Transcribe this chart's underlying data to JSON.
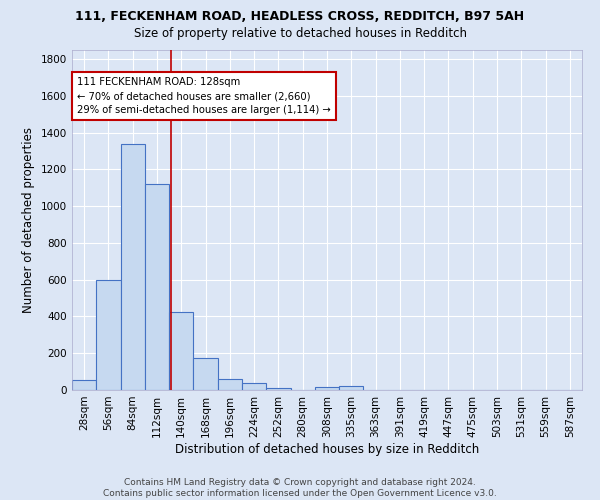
{
  "title_line1": "111, FECKENHAM ROAD, HEADLESS CROSS, REDDITCH, B97 5AH",
  "title_line2": "Size of property relative to detached houses in Redditch",
  "xlabel": "Distribution of detached houses by size in Redditch",
  "ylabel": "Number of detached properties",
  "footer": "Contains HM Land Registry data © Crown copyright and database right 2024.\nContains public sector information licensed under the Open Government Licence v3.0.",
  "bin_labels": [
    "28sqm",
    "56sqm",
    "84sqm",
    "112sqm",
    "140sqm",
    "168sqm",
    "196sqm",
    "224sqm",
    "252sqm",
    "280sqm",
    "308sqm",
    "335sqm",
    "363sqm",
    "391sqm",
    "419sqm",
    "447sqm",
    "475sqm",
    "503sqm",
    "531sqm",
    "559sqm",
    "587sqm"
  ],
  "bar_values": [
    55,
    600,
    1340,
    1120,
    425,
    175,
    60,
    38,
    10,
    0,
    15,
    20,
    0,
    0,
    0,
    0,
    0,
    0,
    0,
    0,
    0
  ],
  "bar_color": "#c6d9f0",
  "bar_edge_color": "#4472c4",
  "vline_color": "#c00000",
  "annotation_text": "111 FECKENHAM ROAD: 128sqm\n← 70% of detached houses are smaller (2,660)\n29% of semi-detached houses are larger (1,114) →",
  "annotation_box_color": "#ffffff",
  "annotation_box_edgecolor": "#c00000",
  "ylim": [
    0,
    1850
  ],
  "yticks": [
    0,
    200,
    400,
    600,
    800,
    1000,
    1200,
    1400,
    1600,
    1800
  ],
  "background_color": "#dce6f5",
  "plot_bg_color": "#dce6f5",
  "grid_color": "#ffffff",
  "title1_fontsize": 9,
  "title2_fontsize": 8.5,
  "axis_label_fontsize": 8.5,
  "tick_fontsize": 7.5,
  "footer_fontsize": 6.5
}
